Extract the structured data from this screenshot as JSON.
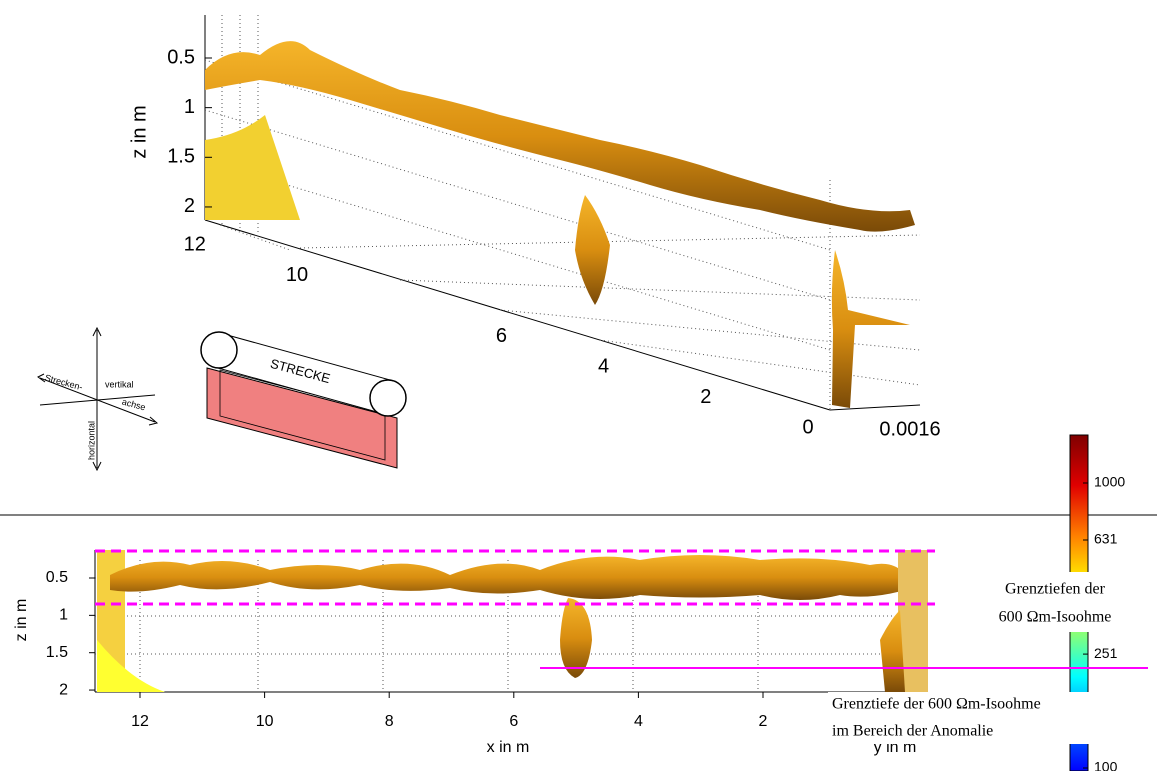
{
  "top_view": {
    "z_label": "z in m",
    "z_ticks": [
      0.5,
      1,
      1.5,
      2
    ],
    "depth_ticks": [
      12,
      10,
      6,
      4,
      2,
      0
    ],
    "depth_extra": "0.0016",
    "orientation_labels": [
      "Strecken-",
      "achse",
      "vertikal",
      "horizontal"
    ],
    "box_label": "STRECKE"
  },
  "bottom_view": {
    "z_label": "z in m",
    "x_label": "x in m",
    "y_label": "y in m",
    "z_ticks": [
      0.5,
      1,
      1.5,
      2
    ],
    "x_ticks": [
      12,
      10,
      8,
      6,
      4,
      2
    ]
  },
  "colorbar": {
    "scale": "log",
    "ticks": [
      1000,
      631,
      251,
      100
    ]
  },
  "annotations": {
    "upper": [
      "Grenztiefen der",
      "600 Ωm-Isoohme"
    ],
    "lower": [
      "Grenztiefe der 600 Ωm-Isoohme",
      "im Bereich der Anomalie"
    ]
  }
}
